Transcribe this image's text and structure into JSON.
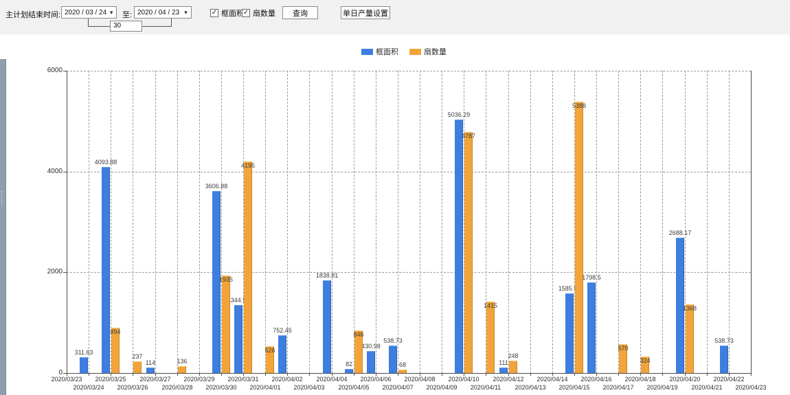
{
  "toolbar": {
    "label_plan_end": "主计划结束时间:",
    "date_from": "2020 / 03 / 24",
    "label_to": "至:",
    "date_to": "2020 / 04 / 23",
    "days_between": "30",
    "checkbox_frame_area": "框面积",
    "checkbox_sash_count": "扇数量",
    "checkbox_checked_glyph": "✓",
    "query_button": "查询",
    "daily_output_button": "单日产量设置",
    "dropdown_arrow_glyph": "▾"
  },
  "legend": {
    "items": [
      {
        "label": "框面积",
        "color": "#3d7ee0"
      },
      {
        "label": "扇数量",
        "color": "#f2a43a"
      }
    ]
  },
  "chart_data": {
    "type": "bar",
    "title": "",
    "xlabel": "",
    "ylabel": "",
    "ylim": [
      0,
      6000
    ],
    "yticks": [
      0,
      2000,
      4000,
      6000
    ],
    "grid": true,
    "legend_position": "top-center",
    "categories": [
      "2020/03/23",
      "2020/03/24",
      "2020/03/25",
      "2020/03/26",
      "2020/03/27",
      "2020/03/28",
      "2020/03/29",
      "2020/03/30",
      "2020/03/31",
      "2020/04/01",
      "2020/04/02",
      "2020/04/03",
      "2020/04/04",
      "2020/04/05",
      "2020/04/06",
      "2020/04/07",
      "2020/04/08",
      "2020/04/09",
      "2020/04/10",
      "2020/04/11",
      "2020/04/12",
      "2020/04/13",
      "2020/04/14",
      "2020/04/15",
      "2020/04/16",
      "2020/04/17",
      "2020/04/18",
      "2020/04/19",
      "2020/04/20",
      "2020/04/21",
      "2020/04/22",
      "2020/04/23"
    ],
    "series": [
      {
        "name": "框面积",
        "color": "#3d7ee0",
        "values": [
          null,
          311.63,
          4093.88,
          null,
          114,
          null,
          null,
          3606.88,
          1344.95,
          null,
          752.45,
          null,
          1838.81,
          82,
          430.98,
          538.73,
          null,
          null,
          5036.29,
          null,
          111,
          null,
          null,
          1585.96,
          1798.5,
          null,
          null,
          null,
          2688.17,
          null,
          538.73,
          null
        ]
      },
      {
        "name": "扇数量",
        "color": "#f2a43a",
        "values": [
          null,
          null,
          894,
          237,
          null,
          136,
          null,
          1935,
          4195,
          526,
          null,
          null,
          null,
          846,
          null,
          68,
          null,
          null,
          4787,
          1415,
          248,
          null,
          null,
          5388,
          null,
          570,
          324,
          null,
          1368,
          null,
          null,
          null
        ]
      }
    ]
  }
}
